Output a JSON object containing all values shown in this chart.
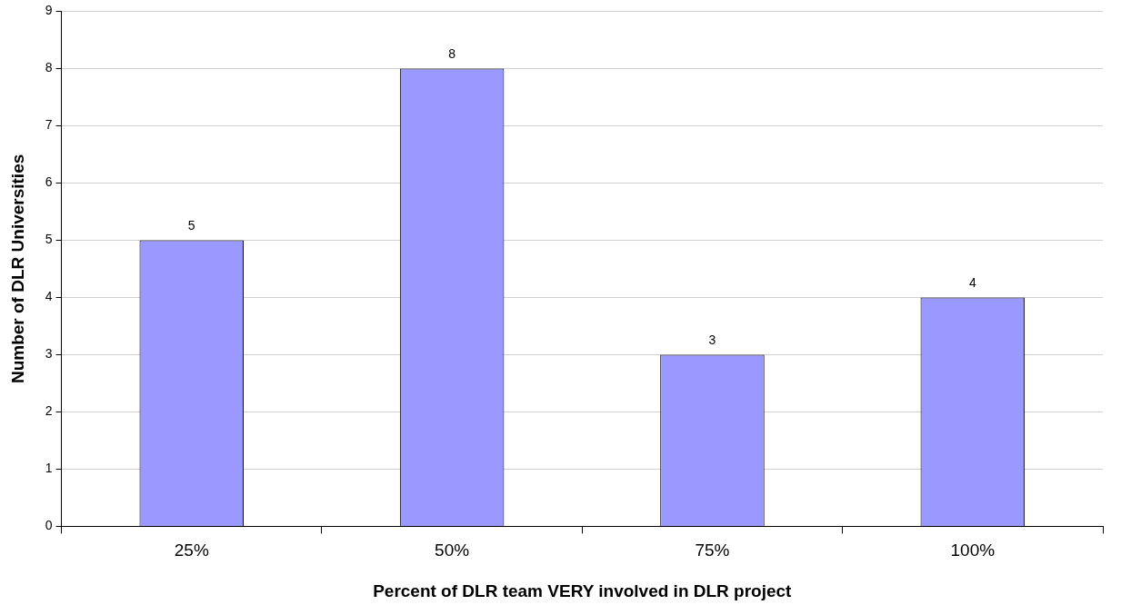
{
  "chart_data": {
    "type": "bar",
    "xlabel": "Percent of DLR team VERY involved in DLR project",
    "ylabel": "Number of DLR Universities",
    "categories": [
      "25%",
      "50%",
      "75%",
      "100%"
    ],
    "values": [
      5,
      8,
      3,
      4
    ],
    "color": "#9999ff",
    "ylim": [
      0,
      9
    ],
    "yticks": [
      0,
      1,
      2,
      3,
      4,
      5,
      6,
      7,
      8,
      9
    ],
    "grid": "y",
    "legend": false,
    "data_labels": true
  }
}
